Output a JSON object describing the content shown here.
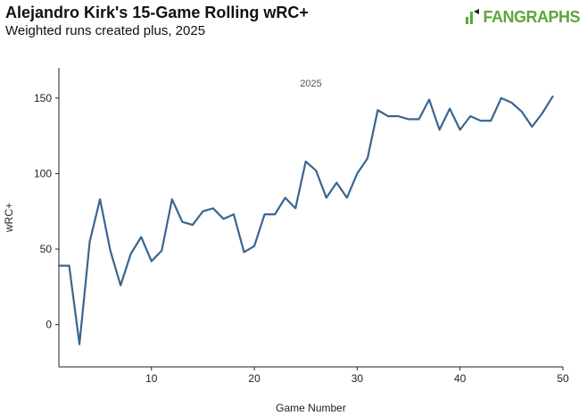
{
  "header": {
    "title": "Alejandro Kirk's 15-Game Rolling wRC+",
    "subtitle": "Weighted runs created plus, 2025",
    "logo_text": "FANGRAPHS"
  },
  "colors": {
    "line": "#3a6591",
    "logo": "#5da63b"
  },
  "chart_data": {
    "type": "line",
    "title": "Alejandro Kirk's 15-Game Rolling wRC+",
    "subtitle": "Weighted runs created plus, 2025",
    "xlabel": "Game Number",
    "ylabel": "wRC+",
    "annotation": "2025",
    "xlim": [
      1,
      50
    ],
    "ylim": [
      -28,
      170
    ],
    "xticks": [
      10,
      20,
      30,
      40,
      50
    ],
    "yticks": [
      0,
      50,
      100,
      150
    ],
    "grid": false,
    "x": [
      1,
      2,
      3,
      4,
      5,
      6,
      7,
      8,
      9,
      10,
      11,
      12,
      13,
      14,
      15,
      16,
      17,
      18,
      19,
      20,
      21,
      22,
      23,
      24,
      25,
      26,
      27,
      28,
      29,
      30,
      31,
      32,
      33,
      34,
      35,
      36,
      37,
      38,
      39,
      40,
      41,
      42,
      43,
      44,
      45,
      46,
      47,
      48,
      49
    ],
    "series": [
      {
        "name": "",
        "values": [
          39,
          39,
          -13,
          55,
          83,
          49,
          26,
          47,
          58,
          42,
          49,
          83,
          68,
          66,
          75,
          77,
          70,
          73,
          48,
          52,
          73,
          73,
          84,
          77,
          108,
          102,
          84,
          94,
          84,
          100,
          110,
          142,
          138,
          138,
          136,
          136,
          149,
          129,
          143,
          129,
          138,
          135,
          135,
          150,
          147,
          141,
          131,
          140,
          151
        ]
      }
    ]
  }
}
